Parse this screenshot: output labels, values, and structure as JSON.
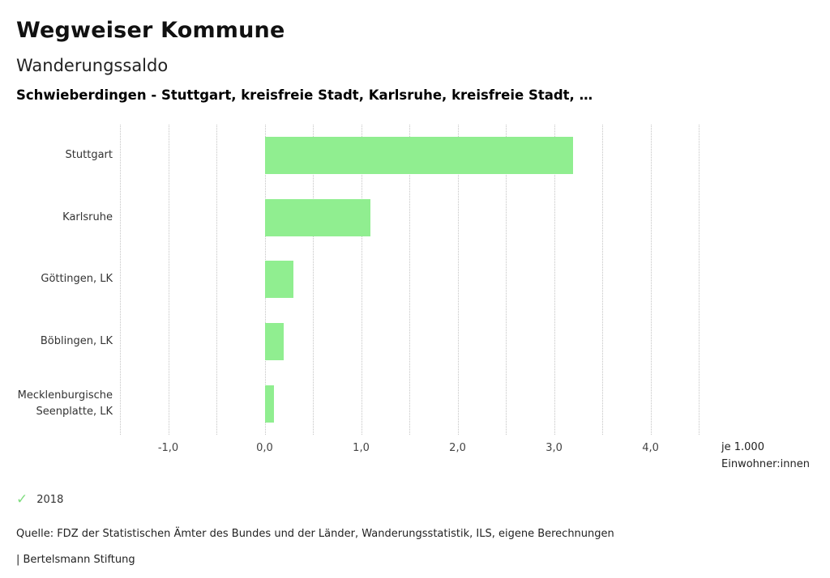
{
  "header": {
    "title": "Wegweiser Kommune",
    "subtitle": "Wanderungssaldo",
    "description": "Schwieberdingen - Stuttgart, kreisfreie Stadt, Karlsruhe, kreisfreie Stadt, …"
  },
  "chart_data": {
    "type": "bar",
    "orientation": "horizontal",
    "title": "Wanderungssaldo",
    "subtitle": "Schwieberdingen - Stuttgart, kreisfreie Stadt, Karlsruhe, kreisfreie Stadt, …",
    "categories": [
      "Stuttgart",
      "Karlsruhe",
      "Göttingen, LK",
      "Böblingen, LK",
      "Mecklenburgische Seenplatte, LK"
    ],
    "series": [
      {
        "name": "2018",
        "values": [
          3.2,
          1.1,
          0.3,
          0.2,
          0.1
        ]
      }
    ],
    "unit": "je 1.000 Einwohner:innen",
    "xlim": [
      -1.5,
      4.55
    ],
    "x_ticks": [
      -1,
      0,
      1,
      2,
      3,
      4
    ],
    "x_tick_labels": [
      "-1,0",
      "0,0",
      "1,0",
      "2,0",
      "3,0",
      "4,0"
    ],
    "x_grid_step": 0.5,
    "grid": "vertical-dotted",
    "legend_position": "bottom-left",
    "bar_color": "#90ee90"
  },
  "axis_unit": {
    "line1": "je 1.000",
    "line2": "Einwohner:innen"
  },
  "legend": {
    "items": [
      {
        "label": "2018",
        "checked": true,
        "color": "#7fdd7f"
      }
    ]
  },
  "footer": {
    "source": "Quelle: FDZ der Statistischen Ämter des Bundes und der Länder, Wanderungsstatistik, ILS, eigene Berechnungen",
    "branding": "| Bertelsmann Stiftung"
  }
}
